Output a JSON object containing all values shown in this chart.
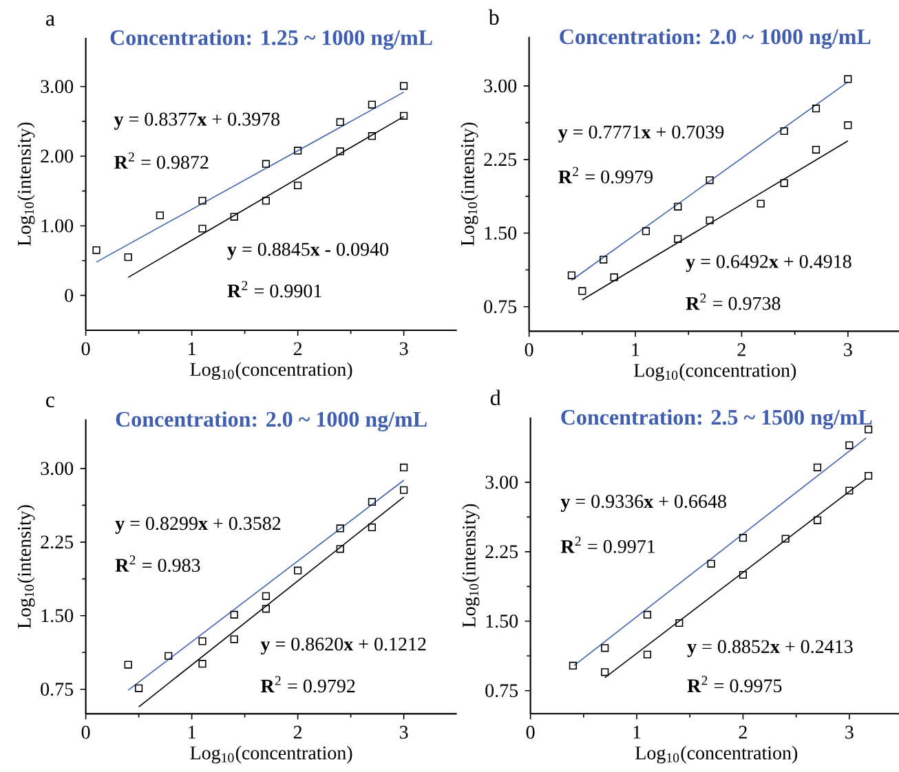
{
  "chart_data": [
    {
      "type": "scatter",
      "title": "Concentration: 1.25 ~ 1000 ng/mL",
      "xlabel": "Log$_{10}$(concentration)",
      "ylabel": "Log$_{10}$(intensity)",
      "xlim": [
        0,
        3.5
      ],
      "ylim": [
        -0.5,
        3.7
      ],
      "xticks": [
        0,
        1,
        2,
        3
      ],
      "yticks": [
        0,
        {
          "value": 1,
          "label": "1.00"
        },
        {
          "value": 2,
          "label": "2.00"
        },
        {
          "value": 3,
          "label": "3.00"
        }
      ],
      "annotations": [
        "a",
        "**y** = 0.8377**x** + 0.3978",
        "**R**$^{2}$ = 0.9872",
        "**y** = 0.8845**x** **-** 0.0940",
        "**R**$^{2}$ = 0.9901"
      ],
      "series": [
        {
          "marker": "square",
          "color": "#000000",
          "x": [
            0.1,
            0.4,
            0.7,
            1.1,
            1.7,
            2.0,
            2.4,
            2.7,
            3.0
          ],
          "values": [
            0.65,
            0.55,
            1.15,
            1.36,
            1.89,
            2.08,
            2.49,
            2.74,
            3.01
          ]
        },
        {
          "marker": "square",
          "color": "#000000",
          "x": [
            1.1,
            1.4,
            1.7,
            2.0,
            2.4,
            2.7,
            3.0
          ],
          "values": [
            0.96,
            1.13,
            1.36,
            1.58,
            2.07,
            2.29,
            2.58
          ]
        },
        {
          "type": "line",
          "color": "#4060b0",
          "x": [
            0.1,
            3.0
          ],
          "values": [
            0.48,
            2.92
          ]
        },
        {
          "type": "line",
          "color": "#000000",
          "x": [
            0.4,
            3.0
          ],
          "values": [
            0.26,
            2.57
          ]
        }
      ]
    },
    {
      "type": "scatter",
      "title": "Concentration: 2.0 ~ 1000 ng/mL",
      "xlabel": "Log$_{10}$(concentration)",
      "ylabel": "Log$_{10}$(intensity)",
      "xlim": [
        0,
        3.5
      ],
      "ylim": [
        0.5,
        3.5
      ],
      "xticks": [
        0,
        1,
        2,
        3
      ],
      "yticks": [
        0.75,
        {
          "value": 1.5,
          "label": "1.50"
        },
        2.25,
        {
          "value": 3,
          "label": "3.00"
        }
      ],
      "annotations": [
        "b",
        "**y** = 0.7771**x** + 0.7039",
        "**R**$^{2}$ = 0.9979",
        "**y** = 0.6492**x** + 0.4918",
        "**R**$^{2}$ = 0.9738"
      ],
      "series": [
        {
          "marker": "square",
          "color": "#000000",
          "x": [
            0.4,
            0.7,
            1.1,
            1.4,
            1.7,
            2.4,
            2.7,
            3.0
          ],
          "values": [
            1.07,
            1.23,
            1.52,
            1.77,
            2.04,
            2.54,
            2.77,
            3.07
          ]
        },
        {
          "marker": "square",
          "color": "#000000",
          "x": [
            0.5,
            0.8,
            1.4,
            1.7,
            2.18,
            2.4,
            2.7,
            3.0
          ],
          "values": [
            0.91,
            1.05,
            1.44,
            1.63,
            1.8,
            2.01,
            2.35,
            2.6
          ]
        },
        {
          "type": "line",
          "color": "#4060b0",
          "x": [
            0.4,
            3.0
          ],
          "values": [
            1.02,
            3.04
          ]
        },
        {
          "type": "line",
          "color": "#000000",
          "x": [
            0.5,
            3.0
          ],
          "values": [
            0.82,
            2.44
          ]
        }
      ]
    },
    {
      "type": "scatter",
      "title": "Concentration: 2.0 ~ 1000 ng/mL",
      "xlabel": "Log$_{10}$(concentration)",
      "ylabel": "Log$_{10}$(intensity)",
      "xlim": [
        0,
        3.5
      ],
      "ylim": [
        0.5,
        3.5
      ],
      "xticks": [
        0,
        1,
        2,
        3
      ],
      "yticks": [
        0.75,
        {
          "value": 1.5,
          "label": "1.50"
        },
        2.25,
        {
          "value": 3,
          "label": "3.00"
        }
      ],
      "annotations": [
        "c",
        "**y** = 0.8299**x** + 0.3582",
        "**R**$^{2}$ = 0.983",
        "**y** = 0.8620**x** + 0.1212",
        "**R**$^{2}$ = 0.9792"
      ],
      "series": [
        {
          "marker": "square",
          "color": "#000000",
          "x": [
            0.4,
            0.78,
            1.1,
            1.4,
            1.7,
            2.0,
            2.4,
            2.7,
            3.0
          ],
          "values": [
            1.0,
            1.09,
            1.24,
            1.51,
            1.7,
            1.96,
            2.39,
            2.66,
            3.01
          ]
        },
        {
          "marker": "square",
          "color": "#000000",
          "x": [
            0.5,
            1.1,
            1.4,
            1.7,
            2.4,
            2.7,
            3.0
          ],
          "values": [
            0.76,
            1.01,
            1.26,
            1.57,
            2.18,
            2.4,
            2.78
          ]
        },
        {
          "type": "line",
          "color": "#4060b0",
          "x": [
            0.4,
            3.0
          ],
          "values": [
            0.74,
            2.88
          ]
        },
        {
          "type": "line",
          "color": "#000000",
          "x": [
            0.5,
            3.0
          ],
          "values": [
            0.57,
            2.71
          ]
        }
      ]
    },
    {
      "type": "scatter",
      "title": "Concentration: 2.5 ~ 1500 ng/mL",
      "xlabel": "Log$_{10}$(concentration)",
      "ylabel": "Log$_{10}$(intensity)",
      "xlim": [
        0,
        3.5
      ],
      "ylim": [
        0.5,
        3.7
      ],
      "xticks": [
        0,
        1,
        2,
        3
      ],
      "yticks": [
        0.75,
        {
          "value": 1.5,
          "label": "1.50"
        },
        2.25,
        {
          "value": 3,
          "label": "3.00"
        }
      ],
      "annotations": [
        "d",
        "**y** = 0.9336**x** + 0.6648",
        "**R**$^{2}$ = 0.9971",
        "**y** = 0.8852**x** + 0.2413",
        "**R**$^{2}$ = 0.9975"
      ],
      "series": [
        {
          "marker": "square",
          "color": "#000000",
          "x": [
            0.4,
            0.7,
            1.1,
            1.7,
            2.0,
            2.7,
            3.0,
            3.18
          ],
          "values": [
            1.02,
            1.21,
            1.57,
            2.12,
            2.4,
            3.16,
            3.4,
            3.57
          ]
        },
        {
          "marker": "square",
          "color": "#000000",
          "x": [
            0.7,
            1.1,
            1.4,
            2.0,
            2.4,
            2.7,
            3.0,
            3.18
          ],
          "values": [
            0.95,
            1.14,
            1.48,
            2.0,
            2.39,
            2.59,
            2.91,
            3.07
          ]
        },
        {
          "type": "line",
          "color": "#4060b0",
          "x": [
            0.41,
            3.16
          ],
          "values": [
            1.02,
            3.48
          ]
        },
        {
          "type": "line",
          "color": "#000000",
          "x": [
            0.7,
            3.16
          ],
          "values": [
            0.89,
            3.04
          ]
        }
      ]
    }
  ]
}
